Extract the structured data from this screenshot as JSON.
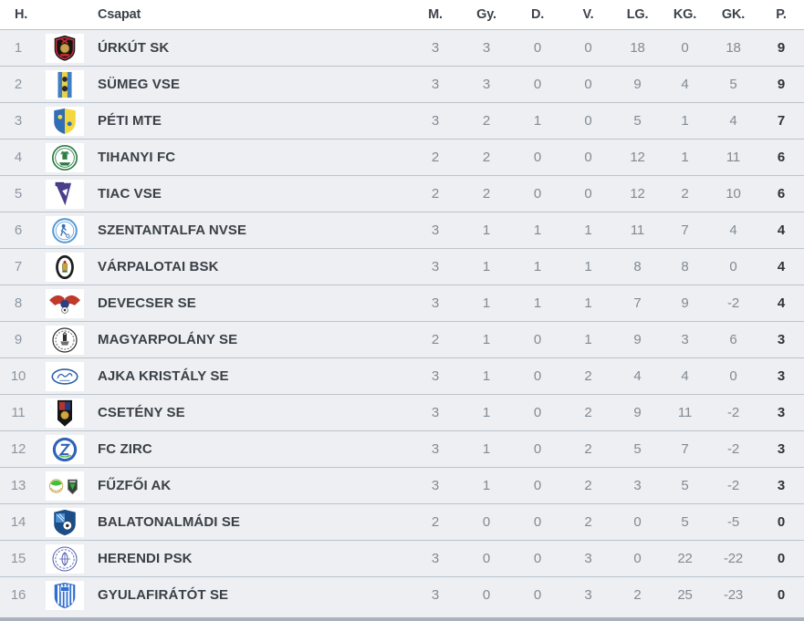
{
  "table": {
    "columns": [
      {
        "key": "rank",
        "label": "H."
      },
      {
        "key": "logo",
        "label": ""
      },
      {
        "key": "team",
        "label": "Csapat"
      },
      {
        "key": "m",
        "label": "M."
      },
      {
        "key": "gy",
        "label": "Gy."
      },
      {
        "key": "d",
        "label": "D."
      },
      {
        "key": "v",
        "label": "V."
      },
      {
        "key": "lg",
        "label": "LG."
      },
      {
        "key": "kg",
        "label": "KG."
      },
      {
        "key": "gk",
        "label": "GK."
      },
      {
        "key": "p",
        "label": "P."
      }
    ],
    "teams": [
      {
        "rank": 1,
        "name": "ÚRKÚT SK",
        "logo": {
          "icon": "urkut-crest",
          "colors": [
            "#141414",
            "#cb2e35",
            "#c8a24a"
          ]
        },
        "stats": {
          "m": 3,
          "gy": 3,
          "d": 0,
          "v": 0,
          "lg": 18,
          "kg": 0,
          "gk": 18,
          "p": 9
        }
      },
      {
        "rank": 2,
        "name": "SÜMEG VSE",
        "logo": {
          "icon": "sumeg-stripes",
          "colors": [
            "#3f7fc1",
            "#f0d23c",
            "#2b2b2b"
          ]
        },
        "stats": {
          "m": 3,
          "gy": 3,
          "d": 0,
          "v": 0,
          "lg": 9,
          "kg": 4,
          "gk": 5,
          "p": 9
        }
      },
      {
        "rank": 3,
        "name": "PÉTI MTE",
        "logo": {
          "icon": "peti-shield",
          "colors": [
            "#2f6db5",
            "#f3d73e"
          ]
        },
        "stats": {
          "m": 3,
          "gy": 2,
          "d": 1,
          "v": 0,
          "lg": 5,
          "kg": 1,
          "gk": 4,
          "p": 7
        }
      },
      {
        "rank": 4,
        "name": "TIHANYI FC",
        "logo": {
          "icon": "tihanyi-crest",
          "colors": [
            "#2e7d46"
          ]
        },
        "stats": {
          "m": 2,
          "gy": 2,
          "d": 0,
          "v": 0,
          "lg": 12,
          "kg": 1,
          "gk": 11,
          "p": 6
        }
      },
      {
        "rank": 5,
        "name": "TIAC VSE",
        "logo": {
          "icon": "tiac-falcon",
          "colors": [
            "#4a3f8c",
            "#332c66"
          ]
        },
        "stats": {
          "m": 2,
          "gy": 2,
          "d": 0,
          "v": 0,
          "lg": 12,
          "kg": 2,
          "gk": 10,
          "p": 6
        }
      },
      {
        "rank": 6,
        "name": "SZENTANTALFA NVSE",
        "logo": {
          "icon": "szentantalfa-crest",
          "colors": [
            "#5b9bd5",
            "#2f6db5"
          ]
        },
        "stats": {
          "m": 3,
          "gy": 1,
          "d": 1,
          "v": 1,
          "lg": 11,
          "kg": 7,
          "gk": 4,
          "p": 4
        }
      },
      {
        "rank": 7,
        "name": "VÁRPALOTAI BSK",
        "logo": {
          "icon": "varpalota-oval",
          "colors": [
            "#1d1d1d",
            "#caa43b",
            "#b5342c",
            "#3f7f3f"
          ]
        },
        "stats": {
          "m": 3,
          "gy": 1,
          "d": 1,
          "v": 1,
          "lg": 8,
          "kg": 8,
          "gk": 0,
          "p": 4
        }
      },
      {
        "rank": 8,
        "name": "DEVECSER SE",
        "logo": {
          "icon": "devecser-eagle",
          "colors": [
            "#c0392b",
            "#2c3f82"
          ]
        },
        "stats": {
          "m": 3,
          "gy": 1,
          "d": 1,
          "v": 1,
          "lg": 7,
          "kg": 9,
          "gk": -2,
          "p": 4
        }
      },
      {
        "rank": 9,
        "name": "MAGYARPOLÁNY SE",
        "logo": {
          "icon": "magyarpolany-crest",
          "colors": [
            "#2e2e2e",
            "#6f6f6f"
          ]
        },
        "stats": {
          "m": 2,
          "gy": 1,
          "d": 0,
          "v": 1,
          "lg": 9,
          "kg": 3,
          "gk": 6,
          "p": 3
        }
      },
      {
        "rank": 10,
        "name": "AJKA KRISTÁLY SE",
        "logo": {
          "icon": "ajka-ellipse",
          "colors": [
            "#2c5faa"
          ]
        },
        "stats": {
          "m": 3,
          "gy": 1,
          "d": 0,
          "v": 2,
          "lg": 4,
          "kg": 4,
          "gk": 0,
          "p": 3
        }
      },
      {
        "rank": 11,
        "name": "CSETÉNY SE",
        "logo": {
          "icon": "cseteny-pennant",
          "colors": [
            "#141414",
            "#b2352e",
            "#27397c",
            "#d2a53d"
          ]
        },
        "stats": {
          "m": 3,
          "gy": 1,
          "d": 0,
          "v": 2,
          "lg": 9,
          "kg": 11,
          "gk": -2,
          "p": 3
        }
      },
      {
        "rank": 12,
        "name": "FC ZIRC",
        "logo": {
          "icon": "zirc-ring",
          "colors": [
            "#2f62b8",
            "#57b847"
          ]
        },
        "stats": {
          "m": 3,
          "gy": 1,
          "d": 0,
          "v": 2,
          "lg": 5,
          "kg": 7,
          "gk": -2,
          "p": 3
        }
      },
      {
        "rank": 13,
        "name": "FŰZFŐI AK",
        "logo": {
          "icon": "fuzfo-double",
          "colors": [
            "#3cc13c",
            "#c9a84c",
            "#3a3f3a",
            "#2fb531"
          ]
        },
        "stats": {
          "m": 3,
          "gy": 1,
          "d": 0,
          "v": 2,
          "lg": 3,
          "kg": 5,
          "gk": -2,
          "p": 3
        }
      },
      {
        "rank": 14,
        "name": "BALATONALMÁDI SE",
        "logo": {
          "icon": "balatonalmadi-shield",
          "colors": [
            "#1c4d86",
            "#4a90d9"
          ]
        },
        "stats": {
          "m": 2,
          "gy": 0,
          "d": 0,
          "v": 2,
          "lg": 0,
          "kg": 5,
          "gk": -5,
          "p": 0
        }
      },
      {
        "rank": 15,
        "name": "HERENDI PSK",
        "logo": {
          "icon": "herend-crest",
          "colors": [
            "#4d5fae"
          ]
        },
        "stats": {
          "m": 3,
          "gy": 0,
          "d": 0,
          "v": 3,
          "lg": 0,
          "kg": 22,
          "gk": -22,
          "p": 0
        }
      },
      {
        "rank": 16,
        "name": "GYULAFIRÁTÓT SE",
        "logo": {
          "icon": "gyulafiratot-shield",
          "colors": [
            "#2f6fd0"
          ]
        },
        "stats": {
          "m": 3,
          "gy": 0,
          "d": 0,
          "v": 3,
          "lg": 2,
          "kg": 25,
          "gk": -23,
          "p": 0
        }
      }
    ]
  },
  "colors": {
    "header_bg": "#ffffff",
    "header_text": "#3e434b",
    "row_bg": "#edeff2",
    "separator": "#bcc3cc",
    "rank_text": "#8d96a2",
    "team_text": "#3a4047",
    "stat_text": "#838a94",
    "points_text": "#2f343a",
    "bottom_bar": "#aab3bd"
  }
}
